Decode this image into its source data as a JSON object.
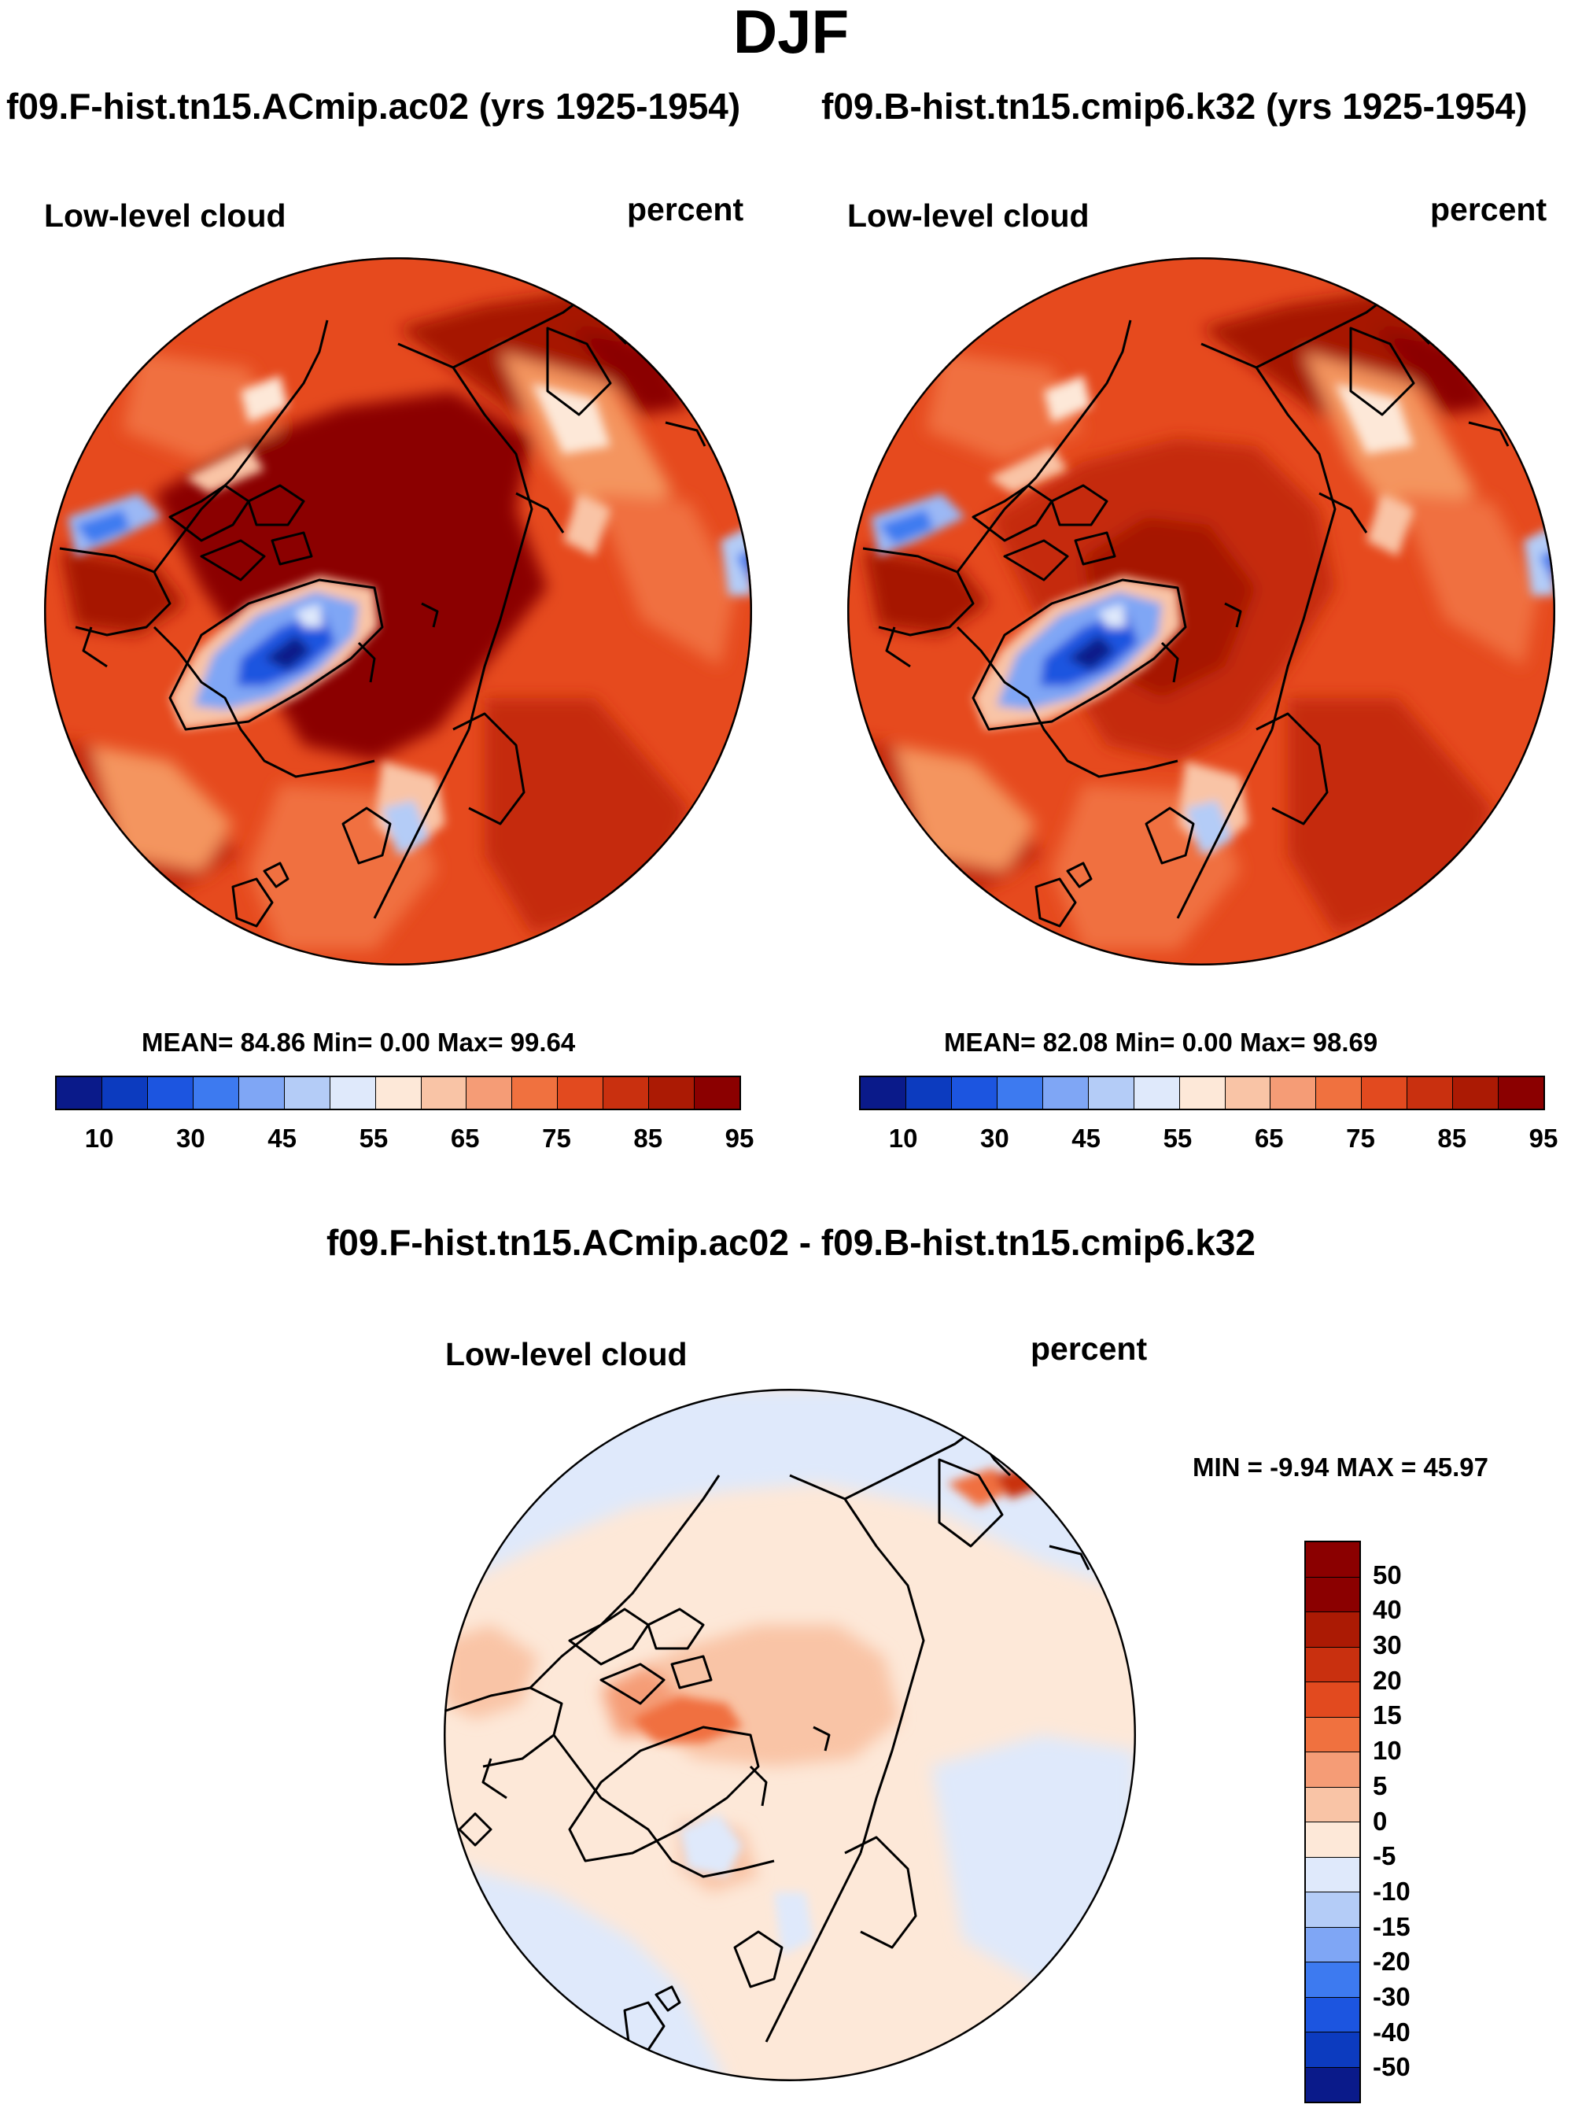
{
  "title": "DJF",
  "panels": {
    "left": {
      "case_title": "f09.F-hist.tn15.ACmip.ac02 (yrs 1925-1954)",
      "variable": "Low-level cloud",
      "units": "percent",
      "stats": "MEAN=  84.86  Min=    0.00  Max=  99.64"
    },
    "right": {
      "case_title": "f09.B-hist.tn15.cmip6.k32 (yrs 1925-1954)",
      "variable": "Low-level cloud",
      "units": "percent",
      "stats": "MEAN=  82.08  Min=    0.00  Max=  98.69"
    },
    "diff": {
      "case_title": "f09.F-hist.tn15.ACmip.ac02 - f09.B-hist.tn15.cmip6.k32",
      "variable": "Low-level cloud",
      "units": "percent",
      "stats": "MIN =  -9.94 MAX =  45.97"
    }
  },
  "colorbar_abs": {
    "tick_labels": [
      "10",
      "30",
      "45",
      "55",
      "65",
      "75",
      "85",
      "95"
    ],
    "colors": [
      "#0a1a8a",
      "#0c3bbf",
      "#1c55e0",
      "#3d7af0",
      "#7fa6f5",
      "#b4ccf7",
      "#dfe9fb",
      "#fde8d8",
      "#f9c4a6",
      "#f59c76",
      "#f0713f",
      "#e24a1f",
      "#c9300f",
      "#ab1a04",
      "#8b0000"
    ]
  },
  "colorbar_diff": {
    "tick_labels": [
      "50",
      "40",
      "30",
      "20",
      "15",
      "10",
      "5",
      "0",
      "-5",
      "-10",
      "-15",
      "-20",
      "-30",
      "-40",
      "-50"
    ],
    "colors": [
      "#8b0000",
      "#ab1a04",
      "#c9300f",
      "#e24a1f",
      "#f0713f",
      "#f59c76",
      "#f9c4a6",
      "#fde8d8",
      "#dfe9fb",
      "#b4ccf7",
      "#7fa6f5",
      "#3d7af0",
      "#1c55e0",
      "#0c3bbf",
      "#0a1a8a"
    ]
  }
}
